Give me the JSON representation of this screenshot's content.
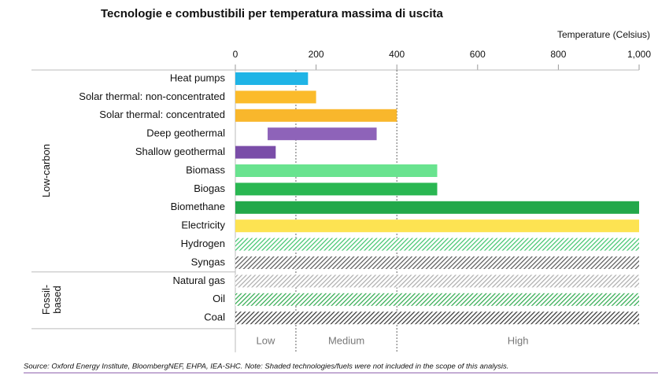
{
  "chart_data": {
    "type": "floating-bar",
    "title": "Tecnologie e combustibili per temperatura massima di uscita",
    "x_label": "Temperature (Celsius)",
    "xlim": [
      0,
      1000
    ],
    "xticks": [
      0,
      200,
      400,
      600,
      800,
      {
        "value": 1000,
        "label": "1,000"
      }
    ],
    "zone_bounds": [
      150,
      400
    ],
    "zones": [
      "Low",
      "Medium",
      "High"
    ],
    "groups": [
      {
        "label": "Low-carbon",
        "categories": [
          "Heat pumps",
          "Solar thermal: non-concentrated",
          "Solar thermal: concentrated",
          "Deep geothermal",
          "Shallow geothermal",
          "Biomass",
          "Biogas",
          "Biomethane",
          "Electricity",
          "Hydrogen",
          "Syngas"
        ],
        "start": [
          0,
          0,
          0,
          80,
          0,
          0,
          0,
          0,
          0,
          0,
          0
        ],
        "end": [
          180,
          200,
          400,
          350,
          100,
          500,
          500,
          1000,
          1000,
          1000,
          1000
        ],
        "colors": [
          "#1fb4e6",
          "#fbbb2b",
          "#f9b72c",
          "#8e63b9",
          "#7a4da8",
          "#69e38f",
          "#2ab752",
          "#22a84a",
          "#fde352",
          "#3cc36a",
          "#555555"
        ],
        "hatched": [
          false,
          false,
          false,
          false,
          false,
          false,
          false,
          false,
          false,
          true,
          true
        ]
      },
      {
        "label": "Fossil-based",
        "categories": [
          "Natural gas",
          "Oil",
          "Coal"
        ],
        "start": [
          0,
          0,
          0
        ],
        "end": [
          1000,
          1000,
          1000
        ],
        "colors": [
          "#aaaaaa",
          "#2aa84a",
          "#333333"
        ],
        "hatched": [
          true,
          true,
          true
        ]
      }
    ],
    "source": "Source: Oxford Energy Institute, BloombergNEF, EHPA, IEA-SHC. Note: Shaded technologies/fuels were not included in the scope of this analysis."
  }
}
